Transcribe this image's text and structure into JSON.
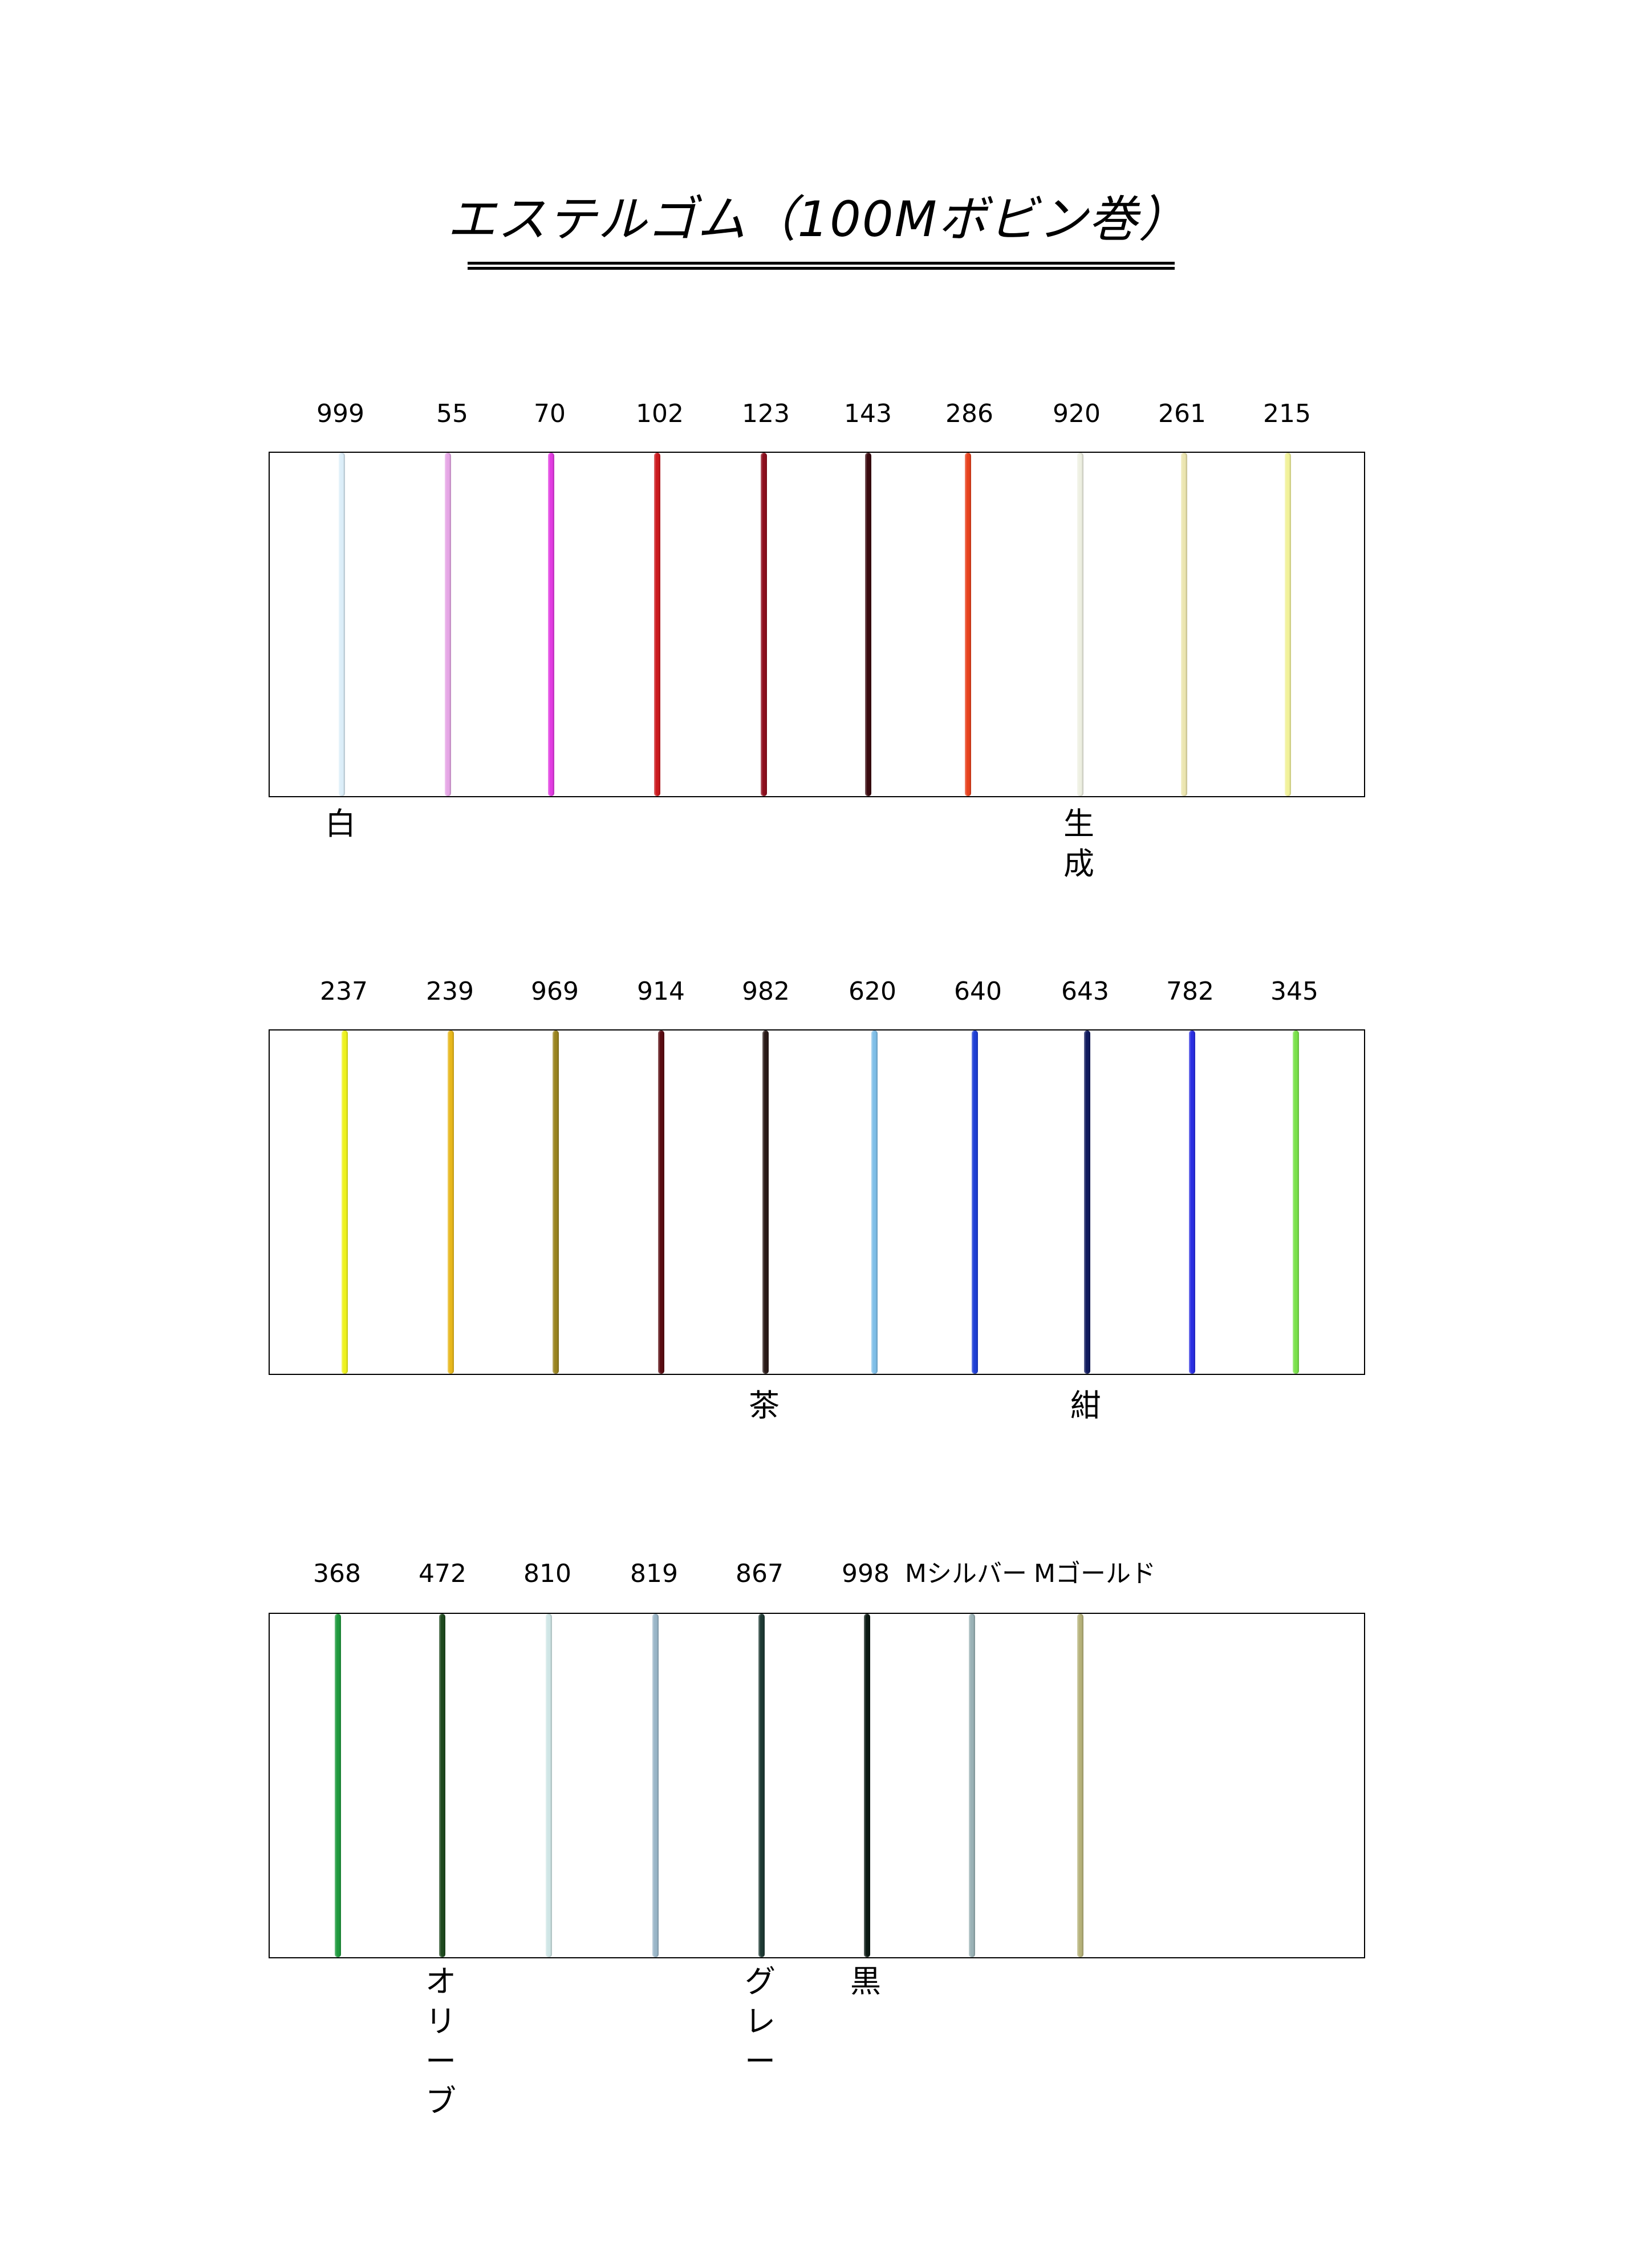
{
  "title": "エステルゴム（100Mボビン巻）",
  "panels": [
    {
      "cords": [
        {
          "code": "999",
          "color": "#dceef9"
        },
        {
          "code": "55",
          "color": "#e6a6e6"
        },
        {
          "code": "70",
          "color": "#e23ce2"
        },
        {
          "code": "102",
          "color": "#cc1a1f"
        },
        {
          "code": "123",
          "color": "#8e0f1e"
        },
        {
          "code": "143",
          "color": "#3b0a10"
        },
        {
          "code": "286",
          "color": "#e8421e"
        },
        {
          "code": "920",
          "color": "#eef0e2"
        },
        {
          "code": "261",
          "color": "#ece6b0"
        },
        {
          "code": "215",
          "color": "#f2f29a"
        }
      ],
      "names": [
        {
          "index": 0,
          "text": "白"
        },
        {
          "index": 7,
          "text": "生成"
        }
      ]
    },
    {
      "cords": [
        {
          "code": "237",
          "color": "#eef21e"
        },
        {
          "code": "239",
          "color": "#e8b81c"
        },
        {
          "code": "969",
          "color": "#9a8420"
        },
        {
          "code": "914",
          "color": "#5a0c12"
        },
        {
          "code": "982",
          "color": "#2a1a18"
        },
        {
          "code": "620",
          "color": "#7fbfe8"
        },
        {
          "code": "640",
          "color": "#1f3fd6"
        },
        {
          "code": "643",
          "color": "#101a5e"
        },
        {
          "code": "782",
          "color": "#2a2ee2"
        },
        {
          "code": "345",
          "color": "#7ae24a"
        }
      ],
      "names": [
        {
          "index": 4,
          "text": "茶"
        },
        {
          "index": 7,
          "text": "紺"
        }
      ]
    },
    {
      "cords": [
        {
          "code": "368",
          "color": "#1f9a3e"
        },
        {
          "code": "472",
          "color": "#1e4a1e"
        },
        {
          "code": "810",
          "color": "#cfe6e6"
        },
        {
          "code": "819",
          "color": "#9ab6c8"
        },
        {
          "code": "867",
          "color": "#1e3a34"
        },
        {
          "code": "998",
          "color": "#0c1a14"
        },
        {
          "code": "Mシルバー",
          "color": "#9ab2b6"
        },
        {
          "code": "Mゴールド",
          "color": "#b6b27a"
        }
      ],
      "names": [
        {
          "index": 1,
          "text": "オリーブ"
        },
        {
          "index": 4,
          "text": "グレー"
        },
        {
          "index": 5,
          "text": "黒"
        }
      ]
    }
  ]
}
